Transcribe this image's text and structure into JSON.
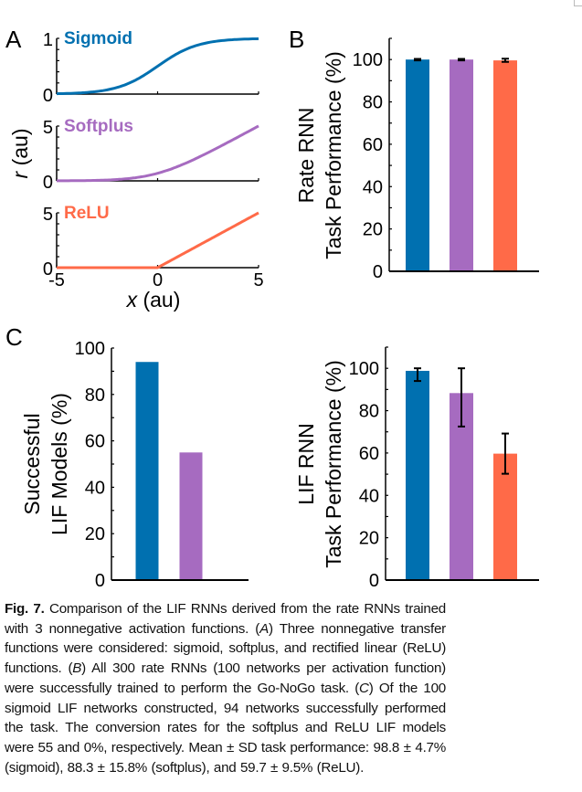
{
  "colors": {
    "sigmoid": "#0070b0",
    "softplus": "#a66bc0",
    "relu": "#ff6a48",
    "axis": "#000000"
  },
  "panel_labels": {
    "a": "A",
    "b": "B",
    "c": "C"
  },
  "chart_data": [
    {
      "panel": "A",
      "type": "line",
      "xlabel_var": "x",
      "xlabel_unit": " (au)",
      "ylabel_var": "r",
      "ylabel_unit": " (au)",
      "x_ticks": [
        "-5",
        "0",
        "5"
      ],
      "xlim": [
        -5,
        5
      ],
      "series": [
        {
          "name": "Sigmoid",
          "function": "sigmoid",
          "color_key": "sigmoid",
          "ylim": [
            0,
            1
          ],
          "y_ticks": [
            "0",
            "1"
          ]
        },
        {
          "name": "Softplus",
          "function": "softplus",
          "color_key": "softplus",
          "ylim": [
            0,
            5
          ],
          "y_ticks": [
            "0",
            "5"
          ]
        },
        {
          "name": "ReLU",
          "function": "relu",
          "color_key": "relu",
          "ylim": [
            0,
            5
          ],
          "y_ticks": [
            "0",
            "5"
          ]
        }
      ]
    },
    {
      "panel": "B",
      "type": "bar",
      "ylabel_line1": "Rate RNN",
      "ylabel_line2": "Task Performance (%)",
      "categories": [
        "Sigmoid",
        "Softplus",
        "ReLU"
      ],
      "values": [
        100,
        100,
        99.6
      ],
      "error_low": [
        99.6,
        99.6,
        98.9
      ],
      "error_high": [
        100.3,
        100.3,
        100.4
      ],
      "ylim": [
        0,
        110
      ],
      "y_ticks": [
        0,
        20,
        40,
        60,
        80,
        100
      ]
    },
    {
      "panel": "C-left",
      "type": "bar",
      "ylabel_line1": "Successful",
      "ylabel_line2": "LIF Models (%)",
      "categories": [
        "Sigmoid",
        "Softplus",
        "ReLU"
      ],
      "values": [
        94,
        55,
        0
      ],
      "ylim": [
        0,
        100
      ],
      "y_ticks": [
        0,
        20,
        40,
        60,
        80,
        100
      ]
    },
    {
      "panel": "C-right",
      "type": "bar",
      "ylabel_line1": "LIF RNN",
      "ylabel_line2": "Task Performance (%)",
      "categories": [
        "Sigmoid",
        "Softplus",
        "ReLU"
      ],
      "values": [
        98.8,
        88.3,
        59.7
      ],
      "error_low": [
        94,
        72.5,
        50.2
      ],
      "error_high": [
        100,
        100,
        69.2
      ],
      "ylim": [
        0,
        110
      ],
      "y_ticks": [
        0,
        20,
        40,
        60,
        80,
        100
      ]
    }
  ],
  "caption": {
    "label": "Fig. 7.",
    "t1": "  Comparison of the LIF RNNs derived from the rate RNNs trained with 3 nonnegative activation functions. (",
    "a": "A",
    "t2": ") Three nonnegative transfer functions were considered: sigmoid, softplus, and rectified linear (ReLU) functions. (",
    "b": "B",
    "t3": ") All 300 rate RNNs (100 networks per activation function) were successfully trained to perform the Go-NoGo task. (",
    "c": "C",
    "t4": ") Of the 100 sigmoid LIF networks constructed, 94 networks successfully performed the task. The conversion rates for the softplus and ReLU LIF models were 55 and 0%, respectively. Mean ± SD task performance: 98.8 ± 4.7% (sigmoid), 88.3 ± 15.8% (softplus), and 59.7 ± 9.5% (ReLU)."
  }
}
